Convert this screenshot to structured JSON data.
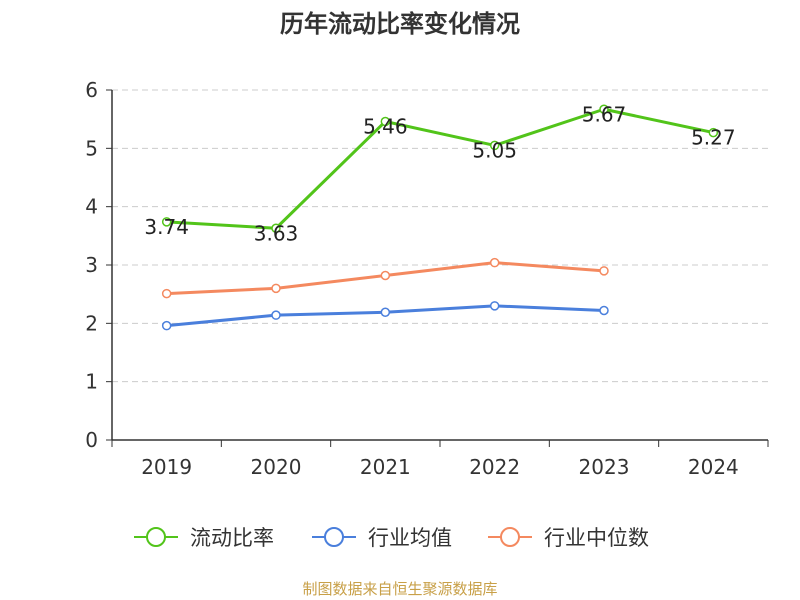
{
  "chart_data": {
    "type": "line",
    "title": "历年流动比率变化情况",
    "categories": [
      "2019",
      "2020",
      "2021",
      "2022",
      "2023",
      "2024"
    ],
    "ylim": [
      0,
      6
    ],
    "yticks": [
      0,
      1,
      2,
      3,
      4,
      5,
      6
    ],
    "grid": true,
    "legend_position": "bottom",
    "series": [
      {
        "name": "流动比率",
        "color": "#52c41a",
        "values": [
          3.74,
          3.63,
          5.46,
          5.05,
          5.67,
          5.27
        ],
        "show_labels": true
      },
      {
        "name": "行业均值",
        "color": "#4a7fdc",
        "values": [
          1.96,
          2.14,
          2.19,
          2.3,
          2.22,
          null
        ],
        "show_labels": false
      },
      {
        "name": "行业中位数",
        "color": "#f4895f",
        "values": [
          2.51,
          2.6,
          2.82,
          3.04,
          2.9,
          null
        ],
        "show_labels": false
      }
    ]
  },
  "footer": "制图数据来自恒生聚源数据库"
}
